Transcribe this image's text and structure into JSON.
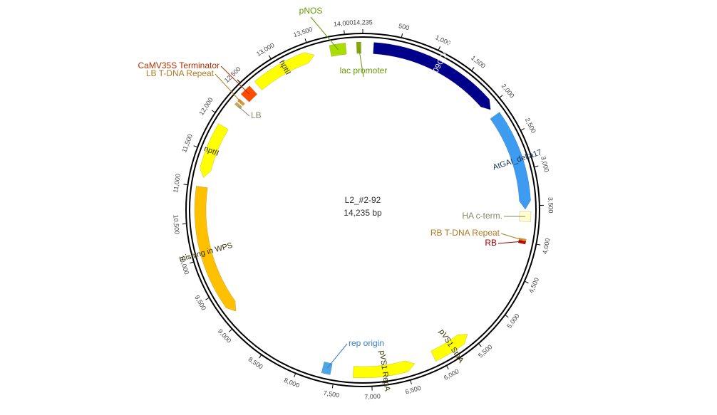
{
  "plasmid": {
    "name": "L2_#2-92",
    "length": 14235,
    "length_label": "14,235 bp",
    "ticks": [
      {
        "value": 500,
        "label": "500"
      },
      {
        "value": 1000,
        "label": "1,000"
      },
      {
        "value": 1500,
        "label": "1,500"
      },
      {
        "value": 2000,
        "label": "2,000"
      },
      {
        "value": 2500,
        "label": "2,500"
      },
      {
        "value": 3000,
        "label": "3,000"
      },
      {
        "value": 3500,
        "label": "3,500"
      },
      {
        "value": 4000,
        "label": "4,000"
      },
      {
        "value": 4500,
        "label": "4,500"
      },
      {
        "value": 5000,
        "label": "5,000"
      },
      {
        "value": 5500,
        "label": "5,500"
      },
      {
        "value": 6000,
        "label": "6,000"
      },
      {
        "value": 6500,
        "label": "6,500"
      },
      {
        "value": 7000,
        "label": "7,000"
      },
      {
        "value": 7500,
        "label": "7,500"
      },
      {
        "value": 8000,
        "label": "8,000"
      },
      {
        "value": 8500,
        "label": "8,500"
      },
      {
        "value": 9000,
        "label": "9,000"
      },
      {
        "value": 9500,
        "label": "9,500"
      },
      {
        "value": 10000,
        "label": "10,000"
      },
      {
        "value": 10500,
        "label": "10,500"
      },
      {
        "value": 11000,
        "label": "11,000"
      },
      {
        "value": 11500,
        "label": "11,500"
      },
      {
        "value": 12000,
        "label": "12,000"
      },
      {
        "value": 12500,
        "label": "12,500"
      },
      {
        "value": 13000,
        "label": "13,000"
      },
      {
        "value": 13500,
        "label": "13,500"
      },
      {
        "value": 14000,
        "label": "14,000"
      },
      {
        "value": 14235,
        "label": "14,235"
      }
    ],
    "features": [
      {
        "label": "pManes09G047609",
        "start": 150,
        "end": 2050,
        "color": "#00008b",
        "strand": 1,
        "label_inside": true,
        "label_color": "#ffffff"
      },
      {
        "label": "AtGAI_delta17",
        "start": 2150,
        "end": 3550,
        "color": "#3d9bf0",
        "strand": 1,
        "label_inside": true,
        "label_color": "#10305a"
      },
      {
        "label": "HA c-term.",
        "start": 3580,
        "end": 3720,
        "color": "#ffffcc",
        "strand": 0,
        "label_inside": false,
        "label_color": "#888866"
      },
      {
        "label": "RB T-DNA Repeat",
        "start": 3960,
        "end": 4000,
        "color": "#e69a28",
        "strand": 0,
        "label_inside": false,
        "label_color": "#b07a20"
      },
      {
        "label": "RB",
        "start": 3990,
        "end": 4010,
        "color": "#cc0000",
        "strand": 0,
        "label_inside": false,
        "label_color": "#990000"
      },
      {
        "label": "pVS1 StaA",
        "start": 5530,
        "end": 6100,
        "color": "#ffff00",
        "strand": -1,
        "label_inside": true,
        "label_color": "#333300"
      },
      {
        "label": "pVS1 RepA",
        "start": 6380,
        "end": 7250,
        "color": "#ffff00",
        "strand": -1,
        "label_inside": true,
        "label_color": "#333300"
      },
      {
        "label": "rep origin",
        "start": 7560,
        "end": 7680,
        "color": "#4da6e8",
        "strand": 0,
        "label_inside": false,
        "label_color": "#3a7fbf"
      },
      {
        "label": "missing in WPS",
        "start": 9150,
        "end": 11000,
        "color": "#ffc000",
        "strand": -1,
        "label_inside": true,
        "label_color": "#333300"
      },
      {
        "label": "nptII",
        "start": 11130,
        "end": 11900,
        "color": "#ffff00",
        "strand": -1,
        "label_inside": true,
        "label_color": "#333300"
      },
      {
        "label": "LB",
        "start": 12240,
        "end": 12260,
        "color": "#ccaa55",
        "strand": 0,
        "label_inside": false,
        "label_color": "#888866"
      },
      {
        "label": "LB T-DNA Repeat",
        "start": 12300,
        "end": 12340,
        "color": "#e69a28",
        "strand": 0,
        "label_inside": false,
        "label_color": "#b07a20"
      },
      {
        "label": "CaMV35S Terminator",
        "start": 12400,
        "end": 12560,
        "color": "#ff4d00",
        "strand": 0,
        "label_inside": false,
        "label_color": "#b03000"
      },
      {
        "label": "hptII",
        "start": 12650,
        "end": 13550,
        "color": "#ffff00",
        "strand": 1,
        "label_inside": true,
        "label_color": "#333300"
      },
      {
        "label": "pNOS",
        "start": 13780,
        "end": 14000,
        "color": "#aadd00",
        "strand": 0,
        "label_inside": false,
        "label_color": "#669900"
      },
      {
        "label": "lac promoter",
        "start": 14150,
        "end": 14210,
        "color": "#88aa00",
        "strand": 0,
        "label_inside": false,
        "label_color": "#669900"
      }
    ]
  }
}
